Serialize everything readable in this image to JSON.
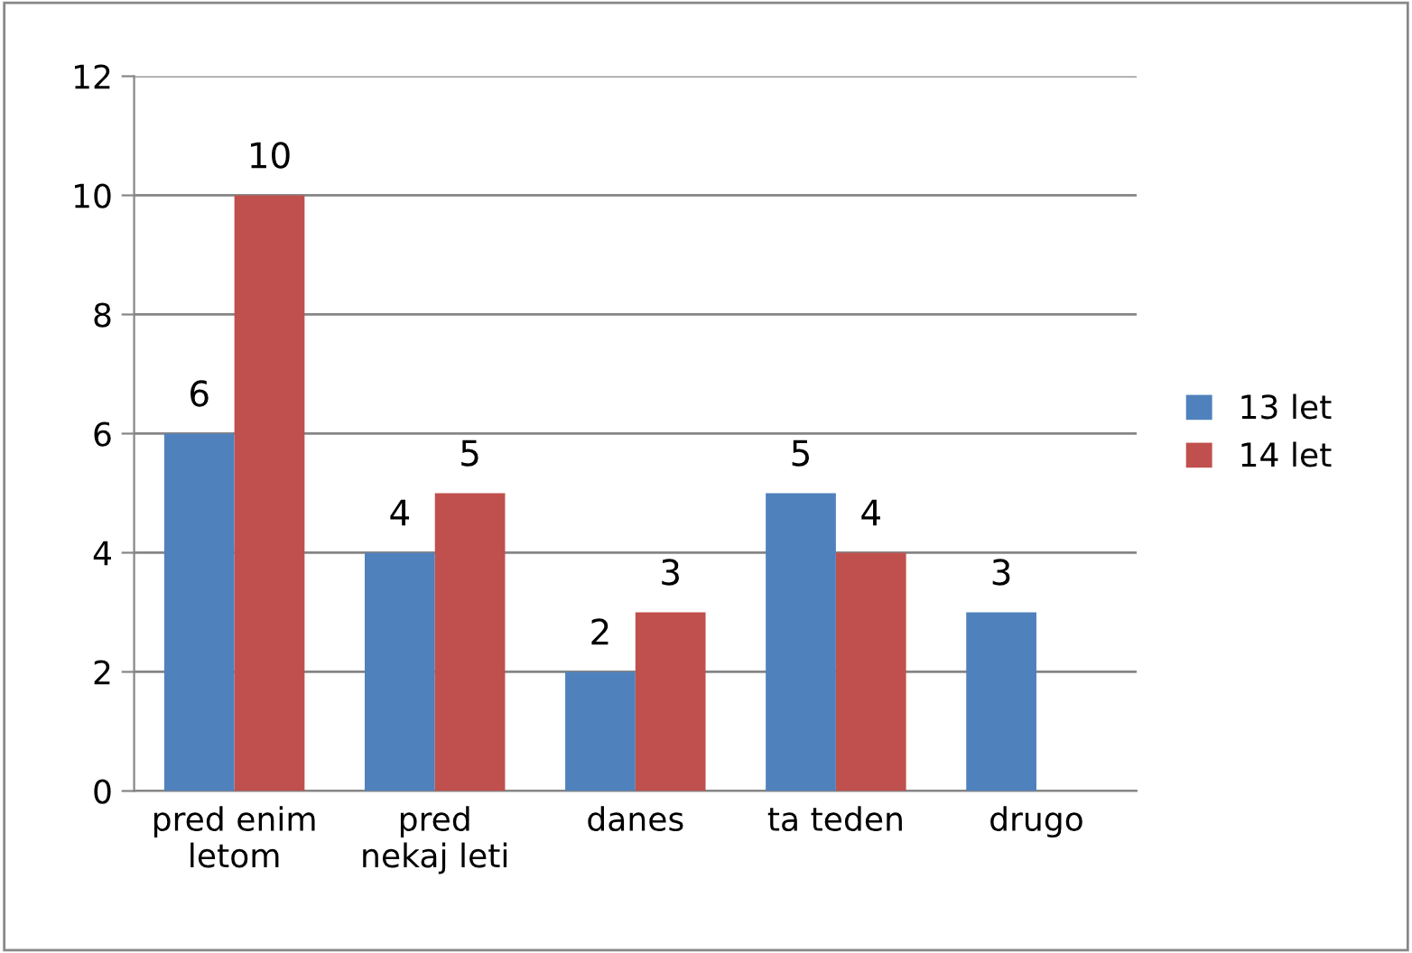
{
  "chart_data": {
    "type": "bar",
    "categories": [
      "pred enim\nletom",
      "pred\nnekaj leti",
      "danes",
      "ta teden",
      "drugo"
    ],
    "series": [
      {
        "name": "13 let",
        "color": "#4f81bd",
        "values": [
          6,
          4,
          2,
          5,
          3
        ]
      },
      {
        "name": "14 let",
        "color": "#c0504d",
        "values": [
          10,
          5,
          3,
          4,
          null
        ]
      }
    ],
    "ylim": [
      0,
      12
    ],
    "yticks": [
      0,
      2,
      4,
      6,
      8,
      10,
      12
    ],
    "grid": "y",
    "legend": "right",
    "data_labels": true
  }
}
